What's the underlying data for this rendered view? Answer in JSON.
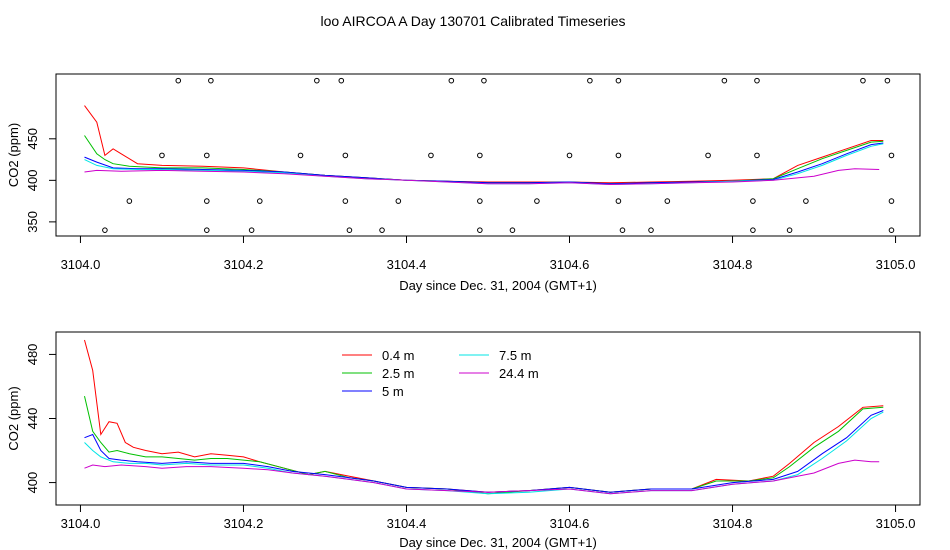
{
  "title": "loo AIRCOA A  Day 130701  Calibrated Timeseries",
  "chart_data": [
    {
      "type": "line",
      "xlabel": "Day since Dec. 31, 2004 (GMT+1)",
      "ylabel": "CO2 (ppm)",
      "xlim": [
        3103.97,
        3105.03
      ],
      "ylim": [
        333,
        528
      ],
      "xticks": [
        3104.0,
        3104.2,
        3104.4,
        3104.6,
        3104.8,
        3105.0
      ],
      "xtick_labels": [
        "3104.0",
        "3104.2",
        "3104.4",
        "3104.6",
        "3104.8",
        "3105.0"
      ],
      "yticks": [
        350,
        400,
        450
      ],
      "ytick_labels": [
        "350",
        "400",
        "450"
      ],
      "grid": false,
      "legend": "none",
      "series": [
        {
          "color": "#ff0000",
          "x": [
            3104.005,
            3104.02,
            3104.03,
            3104.04,
            3104.05,
            3104.07,
            3104.1,
            3104.15,
            3104.2,
            3104.25,
            3104.3,
            3104.35,
            3104.4,
            3104.45,
            3104.5,
            3104.55,
            3104.6,
            3104.65,
            3104.7,
            3104.75,
            3104.8,
            3104.85,
            3104.88,
            3104.91,
            3104.94,
            3104.97,
            3104.985
          ],
          "y": [
            490,
            470,
            430,
            438,
            432,
            420,
            418,
            417,
            415,
            410,
            406,
            403,
            400,
            399,
            398,
            398,
            398,
            397,
            398,
            399,
            400,
            402,
            418,
            428,
            438,
            448,
            448
          ]
        },
        {
          "color": "#00c000",
          "x": [
            3104.005,
            3104.02,
            3104.03,
            3104.04,
            3104.06,
            3104.1,
            3104.15,
            3104.2,
            3104.25,
            3104.3,
            3104.35,
            3104.4,
            3104.45,
            3104.5,
            3104.55,
            3104.6,
            3104.65,
            3104.7,
            3104.75,
            3104.8,
            3104.85,
            3104.88,
            3104.91,
            3104.94,
            3104.97,
            3104.985
          ],
          "y": [
            454,
            432,
            425,
            420,
            417,
            415,
            415,
            413,
            410,
            406,
            403,
            400,
            399,
            397,
            397,
            398,
            396,
            397,
            398,
            399,
            402,
            414,
            426,
            436,
            446,
            447
          ]
        },
        {
          "color": "#0000ff",
          "x": [
            3104.005,
            3104.02,
            3104.04,
            3104.07,
            3104.1,
            3104.15,
            3104.2,
            3104.25,
            3104.3,
            3104.35,
            3104.4,
            3104.45,
            3104.5,
            3104.55,
            3104.6,
            3104.65,
            3104.7,
            3104.75,
            3104.8,
            3104.85,
            3104.88,
            3104.91,
            3104.94,
            3104.97,
            3104.985
          ],
          "y": [
            428,
            422,
            415,
            414,
            414,
            413,
            412,
            410,
            406,
            403,
            400,
            399,
            397,
            397,
            398,
            396,
            397,
            398,
            399,
            401,
            410,
            420,
            432,
            443,
            445
          ]
        },
        {
          "color": "#00e5e5",
          "x": [
            3104.005,
            3104.02,
            3104.04,
            3104.07,
            3104.1,
            3104.15,
            3104.2,
            3104.25,
            3104.3,
            3104.35,
            3104.4,
            3104.45,
            3104.5,
            3104.55,
            3104.6,
            3104.65,
            3104.7,
            3104.75,
            3104.8,
            3104.85,
            3104.88,
            3104.91,
            3104.94,
            3104.97,
            3104.985
          ],
          "y": [
            425,
            418,
            414,
            413,
            413,
            412,
            411,
            409,
            405,
            402,
            400,
            398,
            396,
            396,
            397,
            395,
            396,
            397,
            399,
            400,
            408,
            418,
            430,
            441,
            444
          ]
        },
        {
          "color": "#cc00cc",
          "x": [
            3104.005,
            3104.02,
            3104.05,
            3104.1,
            3104.15,
            3104.2,
            3104.25,
            3104.3,
            3104.35,
            3104.4,
            3104.45,
            3104.5,
            3104.55,
            3104.6,
            3104.65,
            3104.7,
            3104.75,
            3104.8,
            3104.85,
            3104.9,
            3104.93,
            3104.95,
            3104.98
          ],
          "y": [
            410,
            412,
            411,
            412,
            411,
            410,
            408,
            405,
            402,
            400,
            398,
            396,
            396,
            397,
            395,
            396,
            397,
            398,
            400,
            405,
            412,
            414,
            413
          ]
        }
      ],
      "points": {
        "x": [
          3104.03,
          3104.06,
          3104.1,
          3104.12,
          3104.155,
          3104.155,
          3104.155,
          3104.16,
          3104.21,
          3104.22,
          3104.27,
          3104.29,
          3104.32,
          3104.325,
          3104.325,
          3104.33,
          3104.37,
          3104.39,
          3104.43,
          3104.455,
          3104.49,
          3104.49,
          3104.49,
          3104.495,
          3104.53,
          3104.56,
          3104.6,
          3104.625,
          3104.66,
          3104.66,
          3104.66,
          3104.665,
          3104.7,
          3104.72,
          3104.77,
          3104.79,
          3104.825,
          3104.825,
          3104.83,
          3104.83,
          3104.87,
          3104.89,
          3104.96,
          3104.99,
          3104.995,
          3104.995,
          3104.995
        ],
        "y": [
          340,
          375,
          430,
          520,
          340,
          375,
          430,
          520,
          340,
          375,
          430,
          520,
          520,
          375,
          430,
          340,
          340,
          375,
          430,
          520,
          340,
          375,
          430,
          520,
          340,
          375,
          430,
          520,
          375,
          430,
          520,
          340,
          340,
          375,
          430,
          520,
          340,
          375,
          430,
          520,
          340,
          375,
          520,
          520,
          340,
          375,
          430
        ]
      }
    },
    {
      "type": "line",
      "xlabel": "Day since Dec. 31, 2004 (GMT+1)",
      "ylabel": "CO2 (ppm)",
      "xlim": [
        3103.97,
        3105.03
      ],
      "ylim": [
        386,
        494
      ],
      "xticks": [
        3104.0,
        3104.2,
        3104.4,
        3104.6,
        3104.8,
        3105.0
      ],
      "xtick_labels": [
        "3104.0",
        "3104.2",
        "3104.4",
        "3104.6",
        "3104.8",
        "3105.0"
      ],
      "yticks": [
        400,
        440,
        480
      ],
      "ytick_labels": [
        "400",
        "440",
        "480"
      ],
      "grid": false,
      "legend": "top-left",
      "series": [
        {
          "name": "0.4 m",
          "color": "#ff0000",
          "x": [
            3104.005,
            3104.015,
            3104.025,
            3104.035,
            3104.045,
            3104.055,
            3104.065,
            3104.08,
            3104.1,
            3104.12,
            3104.14,
            3104.16,
            3104.18,
            3104.2,
            3104.22,
            3104.25,
            3104.28,
            3104.3,
            3104.33,
            3104.36,
            3104.4,
            3104.45,
            3104.5,
            3104.55,
            3104.6,
            3104.65,
            3104.7,
            3104.75,
            3104.78,
            3104.82,
            3104.85,
            3104.87,
            3104.9,
            3104.93,
            3104.96,
            3104.985
          ],
          "y": [
            489,
            470,
            430,
            438,
            437,
            425,
            422,
            420,
            418,
            419,
            416,
            418,
            417,
            416,
            413,
            409,
            405,
            407,
            404,
            401,
            397,
            396,
            394,
            395,
            397,
            394,
            396,
            396,
            402,
            401,
            404,
            412,
            425,
            435,
            447,
            448
          ]
        },
        {
          "name": "2.5 m",
          "color": "#00c000",
          "x": [
            3104.005,
            3104.015,
            3104.025,
            3104.035,
            3104.045,
            3104.06,
            3104.08,
            3104.1,
            3104.12,
            3104.14,
            3104.16,
            3104.18,
            3104.2,
            3104.22,
            3104.25,
            3104.28,
            3104.3,
            3104.33,
            3104.36,
            3104.4,
            3104.45,
            3104.5,
            3104.55,
            3104.6,
            3104.65,
            3104.7,
            3104.75,
            3104.78,
            3104.82,
            3104.85,
            3104.87,
            3104.9,
            3104.93,
            3104.96,
            3104.985
          ],
          "y": [
            454,
            432,
            425,
            419,
            420,
            418,
            416,
            416,
            415,
            414,
            415,
            415,
            414,
            413,
            409,
            405,
            407,
            403,
            401,
            397,
            396,
            393,
            395,
            397,
            394,
            396,
            396,
            401,
            401,
            403,
            410,
            422,
            432,
            446,
            447
          ]
        },
        {
          "name": "5 m",
          "color": "#0000ff",
          "x": [
            3104.005,
            3104.015,
            3104.025,
            3104.035,
            3104.05,
            3104.07,
            3104.1,
            3104.13,
            3104.16,
            3104.2,
            3104.23,
            3104.26,
            3104.3,
            3104.33,
            3104.36,
            3104.4,
            3104.45,
            3104.5,
            3104.55,
            3104.6,
            3104.65,
            3104.7,
            3104.75,
            3104.8,
            3104.85,
            3104.88,
            3104.91,
            3104.94,
            3104.97,
            3104.985
          ],
          "y": [
            428,
            430,
            420,
            415,
            414,
            413,
            412,
            413,
            412,
            412,
            410,
            407,
            405,
            403,
            401,
            397,
            396,
            394,
            395,
            397,
            394,
            396,
            396,
            400,
            402,
            407,
            418,
            428,
            442,
            445
          ]
        },
        {
          "name": "7.5 m",
          "color": "#00e5e5",
          "x": [
            3104.005,
            3104.015,
            3104.025,
            3104.04,
            3104.06,
            3104.08,
            3104.1,
            3104.13,
            3104.16,
            3104.2,
            3104.23,
            3104.26,
            3104.3,
            3104.33,
            3104.36,
            3104.4,
            3104.45,
            3104.5,
            3104.55,
            3104.6,
            3104.65,
            3104.7,
            3104.75,
            3104.8,
            3104.85,
            3104.88,
            3104.91,
            3104.94,
            3104.97,
            3104.985
          ],
          "y": [
            425,
            420,
            416,
            413,
            412,
            412,
            411,
            412,
            411,
            411,
            409,
            406,
            404,
            402,
            400,
            396,
            395,
            393,
            394,
            396,
            393,
            395,
            395,
            399,
            401,
            405,
            415,
            426,
            440,
            444
          ]
        },
        {
          "name": "24.4 m",
          "color": "#cc00cc",
          "x": [
            3104.005,
            3104.015,
            3104.03,
            3104.05,
            3104.08,
            3104.1,
            3104.13,
            3104.16,
            3104.2,
            3104.23,
            3104.26,
            3104.3,
            3104.33,
            3104.36,
            3104.4,
            3104.45,
            3104.5,
            3104.55,
            3104.6,
            3104.65,
            3104.7,
            3104.75,
            3104.8,
            3104.85,
            3104.9,
            3104.93,
            3104.95,
            3104.97,
            3104.98
          ],
          "y": [
            409,
            411,
            410,
            411,
            410,
            409,
            410,
            410,
            409,
            408,
            406,
            404,
            402,
            400,
            396,
            395,
            394,
            395,
            396,
            393,
            395,
            395,
            399,
            401,
            406,
            412,
            414,
            413,
            413
          ]
        }
      ]
    }
  ]
}
